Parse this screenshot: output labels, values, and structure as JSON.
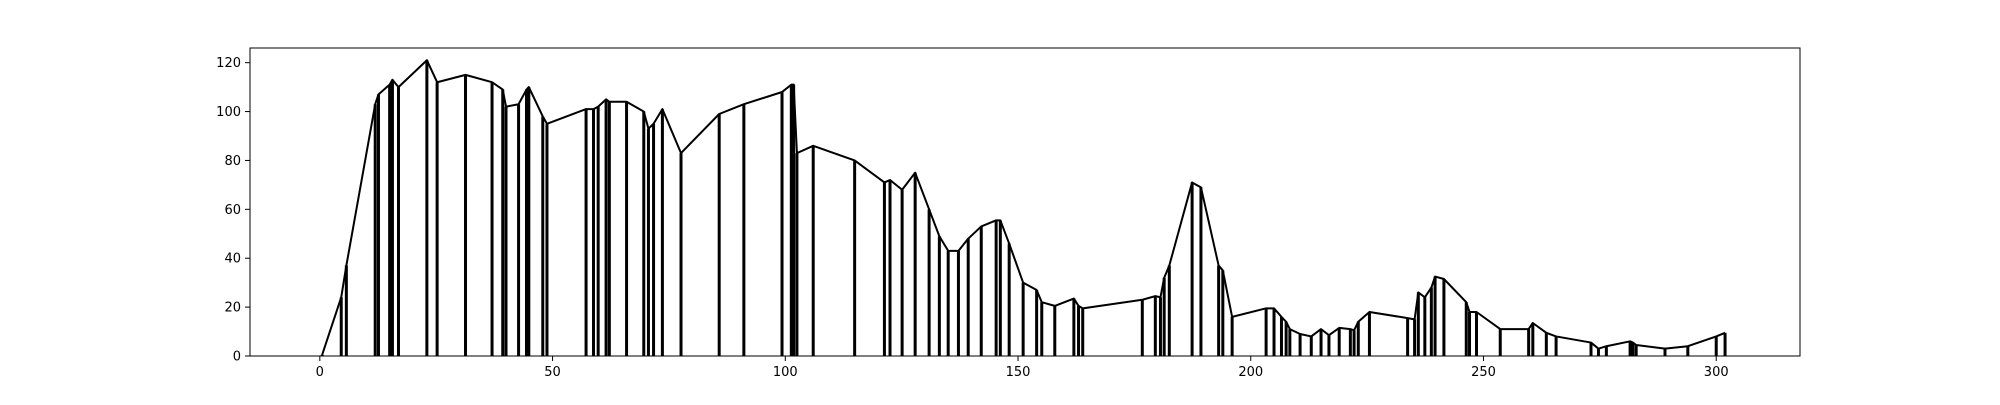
{
  "chart_data": {
    "type": "line",
    "title": "",
    "xlabel": "",
    "ylabel": "",
    "xlim": [
      -15,
      318
    ],
    "ylim": [
      0,
      126
    ],
    "x_ticks": [
      0,
      50,
      100,
      150,
      200,
      250,
      300
    ],
    "y_ticks": [
      0,
      20,
      40,
      60,
      80,
      100,
      120
    ],
    "grid": false,
    "legend": "none",
    "line_color": "#000000",
    "points": [
      [
        0.5,
        0.5
      ],
      [
        4.6,
        24
      ],
      [
        5.7,
        37
      ],
      [
        11.9,
        103
      ],
      [
        12.6,
        107
      ],
      [
        15.0,
        111
      ],
      [
        15.6,
        113
      ],
      [
        16.9,
        110
      ],
      [
        23.0,
        121
      ],
      [
        25.2,
        112
      ],
      [
        31.3,
        115
      ],
      [
        37.0,
        112
      ],
      [
        39.3,
        109
      ],
      [
        40.0,
        102
      ],
      [
        42.7,
        103
      ],
      [
        44.4,
        109
      ],
      [
        44.9,
        110
      ],
      [
        47.9,
        98
      ],
      [
        48.8,
        95
      ],
      [
        57.2,
        101
      ],
      [
        58.8,
        101
      ],
      [
        59.8,
        102
      ],
      [
        61.5,
        105
      ],
      [
        62.2,
        104
      ],
      [
        65.9,
        104
      ],
      [
        69.6,
        100
      ],
      [
        70.6,
        93
      ],
      [
        71.7,
        95
      ],
      [
        73.6,
        101
      ],
      [
        77.6,
        83
      ],
      [
        85.8,
        99
      ],
      [
        91.1,
        103
      ],
      [
        99.3,
        108
      ],
      [
        101.3,
        111
      ],
      [
        101.8,
        111
      ],
      [
        102.5,
        83
      ],
      [
        106.0,
        86
      ],
      [
        114.9,
        80
      ],
      [
        121.3,
        71
      ],
      [
        122.5,
        72
      ],
      [
        125.1,
        68
      ],
      [
        127.9,
        75
      ],
      [
        130.9,
        60
      ],
      [
        133.1,
        49
      ],
      [
        135.0,
        43
      ],
      [
        137.2,
        43
      ],
      [
        139.3,
        48
      ],
      [
        142.1,
        53
      ],
      [
        145.3,
        55.5
      ],
      [
        146.2,
        55.5
      ],
      [
        148.1,
        46
      ],
      [
        151.1,
        30
      ],
      [
        154.0,
        27
      ],
      [
        155.1,
        22
      ],
      [
        157.9,
        20.5
      ],
      [
        162.0,
        23.5
      ],
      [
        163.0,
        20.5
      ],
      [
        163.9,
        19.5
      ],
      [
        176.7,
        23
      ],
      [
        179.5,
        24.5
      ],
      [
        180.6,
        24
      ],
      [
        181.4,
        32
      ],
      [
        182.5,
        37
      ],
      [
        187.4,
        71
      ],
      [
        189.3,
        69
      ],
      [
        193.1,
        37
      ],
      [
        194.0,
        35
      ],
      [
        196.0,
        16
      ],
      [
        203.3,
        19.5
      ],
      [
        205.0,
        19.5
      ],
      [
        206.6,
        16
      ],
      [
        207.6,
        14
      ],
      [
        208.4,
        11
      ],
      [
        210.6,
        9
      ],
      [
        213.0,
        8
      ],
      [
        215.1,
        11
      ],
      [
        216.8,
        8.5
      ],
      [
        219.0,
        11.5
      ],
      [
        221.4,
        11
      ],
      [
        222.2,
        10.5
      ],
      [
        223.1,
        14
      ],
      [
        225.5,
        18
      ],
      [
        233.7,
        15.5
      ],
      [
        235.2,
        15
      ],
      [
        236.0,
        26
      ],
      [
        237.4,
        24
      ],
      [
        238.8,
        28
      ],
      [
        239.6,
        32.5
      ],
      [
        241.5,
        31.5
      ],
      [
        246.3,
        22
      ],
      [
        247.0,
        18
      ],
      [
        248.5,
        18
      ],
      [
        253.6,
        11
      ],
      [
        259.7,
        11
      ],
      [
        260.6,
        13.5
      ],
      [
        263.5,
        9.5
      ],
      [
        265.6,
        8
      ],
      [
        273.1,
        5.5
      ],
      [
        274.7,
        3
      ],
      [
        276.4,
        4
      ],
      [
        281.5,
        6
      ],
      [
        282.1,
        5.5
      ],
      [
        282.8,
        4.5
      ],
      [
        289.0,
        3
      ],
      [
        293.9,
        4
      ],
      [
        300.0,
        8
      ],
      [
        301.9,
        9.5
      ]
    ]
  }
}
